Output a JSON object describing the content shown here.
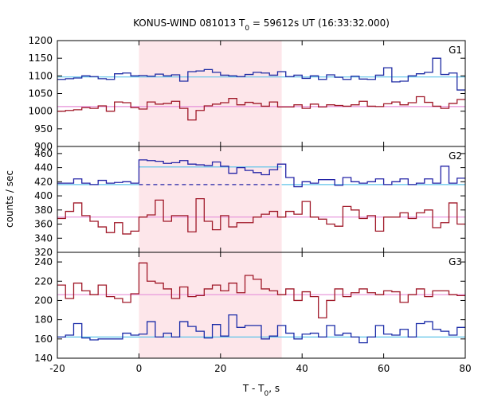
{
  "chart_data": {
    "type": "line",
    "title_prefix": "KONUS-WIND 081013 T",
    "title_sub": "0",
    "title_suffix": " = 59612s UT (16:33:32.000)",
    "xlabel_prefix": "T - T",
    "xlabel_sub": "0",
    "xlabel_suffix": ", s",
    "ylabel": "counts / sec",
    "xlim": [
      -20,
      80
    ],
    "xticks": [
      -20,
      0,
      20,
      40,
      60,
      80
    ],
    "shaded_interval": [
      0,
      35
    ],
    "colors": {
      "shade": "#fde6ea",
      "g2_high": "#2323a6",
      "g3_low": "#1b2ca8",
      "g1_high": "#1d2aa3",
      "low_red": "#a01828",
      "fit_cyan": "#5fc3e8",
      "fit_pink": "#e58fd9"
    },
    "panels": [
      {
        "label": "G1",
        "ylim": [
          900,
          1200
        ],
        "yticks": [
          900,
          950,
          1000,
          1050,
          1100,
          1150,
          1200
        ],
        "series": [
          {
            "role": "high",
            "edges": [
              -20,
              -18,
              -16,
              -14,
              -12,
              -10,
              -8,
              -6,
              -4,
              -2,
              0,
              2,
              4,
              6,
              8,
              10,
              12,
              14,
              16,
              18,
              20,
              22,
              24,
              26,
              28,
              30,
              32,
              34,
              36,
              38,
              40,
              42,
              44,
              46,
              48,
              50,
              52,
              54,
              56,
              58,
              60,
              62,
              64,
              66,
              68,
              70,
              72,
              74,
              76,
              78,
              80
            ],
            "values": [
              1090,
              1092,
              1094,
              1100,
              1098,
              1092,
              1090,
              1106,
              1108,
              1100,
              1101,
              1099,
              1105,
              1100,
              1103,
              1085,
              1112,
              1114,
              1118,
              1110,
              1102,
              1100,
              1098,
              1104,
              1110,
              1108,
              1102,
              1112,
              1098,
              1102,
              1093,
              1100,
              1090,
              1103,
              1096,
              1090,
              1099,
              1091,
              1090,
              1102,
              1123,
              1083,
              1085,
              1100,
              1106,
              1110,
              1150,
              1104,
              1108,
              1060,
              1068
            ],
            "fit": 1097
          },
          {
            "role": "low",
            "edges": [
              -20,
              -18,
              -16,
              -14,
              -12,
              -10,
              -8,
              -6,
              -4,
              -2,
              0,
              2,
              4,
              6,
              8,
              10,
              12,
              14,
              16,
              18,
              20,
              22,
              24,
              26,
              28,
              30,
              32,
              34,
              36,
              38,
              40,
              42,
              44,
              46,
              48,
              50,
              52,
              54,
              56,
              58,
              60,
              62,
              64,
              66,
              68,
              70,
              72,
              74,
              76,
              78,
              80
            ],
            "values": [
              1000,
              1002,
              1004,
              1010,
              1008,
              1015,
              1000,
              1026,
              1024,
              1010,
              1006,
              1026,
              1020,
              1022,
              1028,
              1008,
              975,
              1002,
              1015,
              1020,
              1024,
              1036,
              1018,
              1025,
              1022,
              1014,
              1026,
              1012,
              1012,
              1018,
              1008,
              1020,
              1012,
              1018,
              1016,
              1014,
              1018,
              1028,
              1014,
              1013,
              1021,
              1026,
              1018,
              1024,
              1041,
              1025,
              1014,
              1008,
              1022,
              1033,
              1033
            ],
            "fit": 1013
          }
        ]
      },
      {
        "label": "G2",
        "ylim": [
          320,
          470
        ],
        "yticks": [
          320,
          340,
          360,
          380,
          400,
          420,
          440,
          460
        ],
        "series": [
          {
            "role": "high",
            "edges": [
              -20,
              -18,
              -16,
              -14,
              -12,
              -10,
              -8,
              -6,
              -4,
              -2,
              0,
              2,
              4,
              6,
              8,
              10,
              12,
              14,
              16,
              18,
              20,
              22,
              24,
              26,
              28,
              30,
              32,
              34,
              36,
              38,
              40,
              42,
              44,
              46,
              48,
              50,
              52,
              54,
              56,
              58,
              60,
              62,
              64,
              66,
              68,
              70,
              72,
              74,
              76,
              78,
              80
            ],
            "values": [
              418,
              418,
              424,
              418,
              416,
              422,
              418,
              419,
              420,
              418,
              451,
              450,
              449,
              446,
              447,
              450,
              445,
              444,
              443,
              448,
              442,
              432,
              440,
              436,
              433,
              430,
              437,
              445,
              426,
              413,
              420,
              418,
              423,
              423,
              415,
              426,
              420,
              418,
              420,
              424,
              416,
              420,
              424,
              416,
              418,
              424,
              418,
              442,
              418,
              425,
              425
            ],
            "fit": 416,
            "fit_shaded": 441,
            "dashed_level": 416
          },
          {
            "role": "low",
            "edges": [
              -20,
              -18,
              -16,
              -14,
              -12,
              -10,
              -8,
              -6,
              -4,
              -2,
              0,
              2,
              4,
              6,
              8,
              10,
              12,
              14,
              16,
              18,
              20,
              22,
              24,
              26,
              28,
              30,
              32,
              34,
              36,
              38,
              40,
              42,
              44,
              46,
              48,
              50,
              52,
              54,
              56,
              58,
              60,
              62,
              64,
              66,
              68,
              70,
              72,
              74,
              76,
              78,
              80
            ],
            "values": [
              368,
              378,
              390,
              372,
              364,
              356,
              348,
              362,
              346,
              350,
              370,
              373,
              394,
              364,
              372,
              372,
              349,
              396,
              364,
              352,
              372,
              356,
              362,
              362,
              370,
              374,
              378,
              370,
              378,
              374,
              392,
              370,
              367,
              360,
              357,
              385,
              380,
              368,
              372,
              350,
              370,
              370,
              376,
              368,
              376,
              380,
              355,
              362,
              390,
              360,
              372
            ],
            "fit": 370
          }
        ]
      },
      {
        "label": "G3",
        "ylim": [
          140,
          250
        ],
        "yticks": [
          140,
          160,
          180,
          200,
          220,
          240
        ],
        "series": [
          {
            "role": "high",
            "edges": [
              -20,
              -18,
              -16,
              -14,
              -12,
              -10,
              -8,
              -6,
              -4,
              -2,
              0,
              2,
              4,
              6,
              8,
              10,
              12,
              14,
              16,
              18,
              20,
              22,
              24,
              26,
              28,
              30,
              32,
              34,
              36,
              38,
              40,
              42,
              44,
              46,
              48,
              50,
              52,
              54,
              56,
              58,
              60,
              62,
              64,
              66,
              68,
              70,
              72,
              74,
              76,
              78,
              80
            ],
            "values": [
              162,
              164,
              176,
              161,
              159,
              160,
              160,
              160,
              166,
              164,
              165,
              178,
              162,
              166,
              162,
              178,
              173,
              168,
              161,
              175,
              163,
              185,
              172,
              174,
              174,
              160,
              163,
              174,
              166,
              160,
              165,
              166,
              162,
              174,
              164,
              166,
              162,
              156,
              162,
              174,
              165,
              164,
              170,
              162,
              176,
              178,
              170,
              168,
              164,
              172,
              157
            ],
            "fit": 162
          },
          {
            "role": "low",
            "edges": [
              -20,
              -18,
              -16,
              -14,
              -12,
              -10,
              -8,
              -6,
              -4,
              -2,
              0,
              2,
              4,
              6,
              8,
              10,
              12,
              14,
              16,
              18,
              20,
              22,
              24,
              26,
              28,
              30,
              32,
              34,
              36,
              38,
              40,
              42,
              44,
              46,
              48,
              50,
              52,
              54,
              56,
              58,
              60,
              62,
              64,
              66,
              68,
              70,
              72,
              74,
              76,
              78,
              80
            ],
            "values": [
              216,
              202,
              218,
              210,
              206,
              216,
              204,
              202,
              198,
              207,
              239,
              220,
              218,
              212,
              202,
              214,
              204,
              205,
              212,
              216,
              210,
              218,
              208,
              226,
              222,
              212,
              210,
              206,
              212,
              200,
              209,
              204,
              182,
              200,
              212,
              204,
              208,
              212,
              208,
              206,
              210,
              209,
              198,
              206,
              212,
              204,
              210,
              210,
              206,
              205,
              205
            ],
            "fit": 206
          }
        ]
      }
    ]
  }
}
